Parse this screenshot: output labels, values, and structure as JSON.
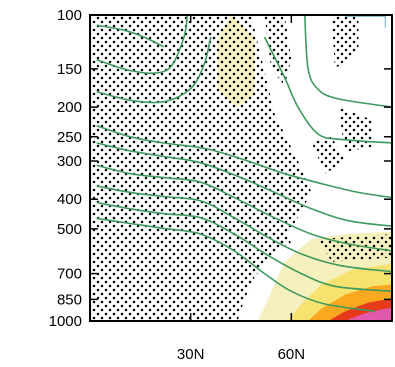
{
  "chart_data": {
    "type": "heatmap",
    "title": "",
    "xlabel": "",
    "ylabel": "",
    "x_axis": {
      "kind": "latitude",
      "range": [
        0,
        90
      ],
      "ticks": [
        30,
        60
      ],
      "tick_labels": [
        "30N",
        "60N"
      ]
    },
    "y_axis": {
      "kind": "pressure",
      "scale": "log",
      "reversed": true,
      "range": [
        100,
        1000
      ],
      "ticks": [
        100,
        150,
        200,
        250,
        300,
        400,
        500,
        700,
        850,
        1000
      ],
      "tick_labels": [
        "100",
        "150",
        "200",
        "250",
        "300",
        "400",
        "500",
        "700",
        "850",
        "1000"
      ]
    },
    "colors": {
      "contour": "#3e9a5e",
      "stipple": "#000000",
      "fill_levels": [
        "#f3edb3",
        "#f6e26a",
        "#f9a41a",
        "#e6341b",
        "#e15ab2"
      ],
      "corner_line": "#7fb9c9"
    },
    "contours": [
      [
        [
          2,
          230
        ],
        [
          12,
          250
        ],
        [
          22,
          262
        ],
        [
          35,
          274
        ],
        [
          47,
          300
        ],
        [
          58,
          330
        ],
        [
          70,
          358
        ],
        [
          80,
          380
        ],
        [
          90,
          395
        ]
      ],
      [
        [
          2,
          262
        ],
        [
          12,
          278
        ],
        [
          22,
          290
        ],
        [
          33,
          304
        ],
        [
          45,
          340
        ],
        [
          55,
          380
        ],
        [
          66,
          430
        ],
        [
          77,
          470
        ],
        [
          90,
          490
        ]
      ],
      [
        [
          2,
          310
        ],
        [
          12,
          330
        ],
        [
          22,
          340
        ],
        [
          33,
          352
        ],
        [
          44,
          400
        ],
        [
          55,
          460
        ],
        [
          66,
          520
        ],
        [
          77,
          560
        ],
        [
          90,
          590
        ]
      ],
      [
        [
          2,
          362
        ],
        [
          12,
          380
        ],
        [
          22,
          392
        ],
        [
          33,
          405
        ],
        [
          43,
          460
        ],
        [
          54,
          540
        ],
        [
          64,
          610
        ],
        [
          75,
          660
        ],
        [
          90,
          690
        ]
      ],
      [
        [
          2,
          410
        ],
        [
          12,
          430
        ],
        [
          22,
          446
        ],
        [
          33,
          460
        ],
        [
          43,
          520
        ],
        [
          53,
          610
        ],
        [
          63,
          700
        ],
        [
          73,
          770
        ],
        [
          90,
          800
        ]
      ],
      [
        [
          2,
          462
        ],
        [
          12,
          480
        ],
        [
          22,
          498
        ],
        [
          33,
          520
        ],
        [
          43,
          590
        ],
        [
          52,
          700
        ],
        [
          60,
          800
        ],
        [
          70,
          880
        ],
        [
          85,
          930
        ]
      ]
    ],
    "upper_contours": [
      [
        [
          2,
          108
        ],
        [
          10,
          112
        ],
        [
          16,
          118
        ],
        [
          22,
          127
        ]
      ],
      [
        [
          2,
          140
        ],
        [
          10,
          150
        ],
        [
          18,
          155
        ],
        [
          24,
          148
        ],
        [
          28,
          118
        ],
        [
          29,
          100
        ]
      ],
      [
        [
          2,
          178
        ],
        [
          12,
          190
        ],
        [
          22,
          192
        ],
        [
          30,
          174
        ],
        [
          34,
          145
        ],
        [
          36,
          118
        ]
      ],
      [
        [
          52,
          118
        ],
        [
          58,
          160
        ],
        [
          62,
          200
        ],
        [
          68,
          245
        ],
        [
          75,
          255
        ],
        [
          90,
          262
        ]
      ],
      [
        [
          64,
          100
        ],
        [
          65,
          150
        ],
        [
          68,
          175
        ],
        [
          74,
          188
        ],
        [
          90,
          200
        ]
      ]
    ],
    "shaded_regions": [
      {
        "level": 0,
        "polygon": [
          [
            38,
            120
          ],
          [
            42,
            100
          ],
          [
            49,
            118
          ],
          [
            49,
            180
          ],
          [
            44,
            200
          ],
          [
            38,
            175
          ]
        ]
      },
      {
        "level": 0,
        "polygon": [
          [
            50,
            1000
          ],
          [
            53,
            850
          ],
          [
            58,
            640
          ],
          [
            66,
            540
          ],
          [
            76,
            520
          ],
          [
            90,
            510
          ],
          [
            90,
            1000
          ]
        ]
      },
      {
        "level": 1,
        "polygon": [
          [
            59,
            1000
          ],
          [
            63,
            880
          ],
          [
            69,
            760
          ],
          [
            78,
            680
          ],
          [
            90,
            650
          ],
          [
            90,
            1000
          ]
        ]
      },
      {
        "level": 2,
        "polygon": [
          [
            65,
            1000
          ],
          [
            69,
            910
          ],
          [
            76,
            820
          ],
          [
            84,
            770
          ],
          [
            90,
            760
          ],
          [
            90,
            1000
          ]
        ]
      },
      {
        "level": 3,
        "polygon": [
          [
            71,
            1000
          ],
          [
            76,
            930
          ],
          [
            83,
            870
          ],
          [
            90,
            845
          ],
          [
            90,
            1000
          ]
        ]
      },
      {
        "level": 4,
        "polygon": [
          [
            76,
            1000
          ],
          [
            81,
            950
          ],
          [
            87,
            915
          ],
          [
            90,
            905
          ],
          [
            90,
            1000
          ]
        ]
      }
    ],
    "stipple_regions": [
      [
        [
          0,
          100
        ],
        [
          48,
          100
        ],
        [
          55,
          210
        ],
        [
          62,
          300
        ],
        [
          66,
          380
        ],
        [
          60,
          500
        ],
        [
          55,
          600
        ],
        [
          49,
          720
        ],
        [
          46,
          850
        ],
        [
          44,
          1000
        ],
        [
          0,
          1000
        ]
      ],
      [
        [
          52,
          100
        ],
        [
          58,
          100
        ],
        [
          60,
          140
        ],
        [
          58,
          170
        ],
        [
          54,
          150
        ]
      ],
      [
        [
          72,
          100
        ],
        [
          80,
          100
        ],
        [
          80,
          130
        ],
        [
          73,
          150
        ]
      ],
      [
        [
          74,
          200
        ],
        [
          84,
          220
        ],
        [
          84,
          270
        ],
        [
          76,
          280
        ]
      ],
      [
        [
          66,
          260
        ],
        [
          72,
          250
        ],
        [
          76,
          300
        ],
        [
          70,
          330
        ]
      ],
      [
        [
          55,
          400
        ],
        [
          60,
          380
        ],
        [
          62,
          440
        ],
        [
          56,
          470
        ]
      ],
      [
        [
          52,
          520
        ],
        [
          58,
          500
        ],
        [
          60,
          560
        ],
        [
          54,
          580
        ]
      ],
      [
        [
          68,
          540
        ],
        [
          90,
          520
        ],
        [
          90,
          620
        ],
        [
          72,
          640
        ]
      ]
    ]
  }
}
